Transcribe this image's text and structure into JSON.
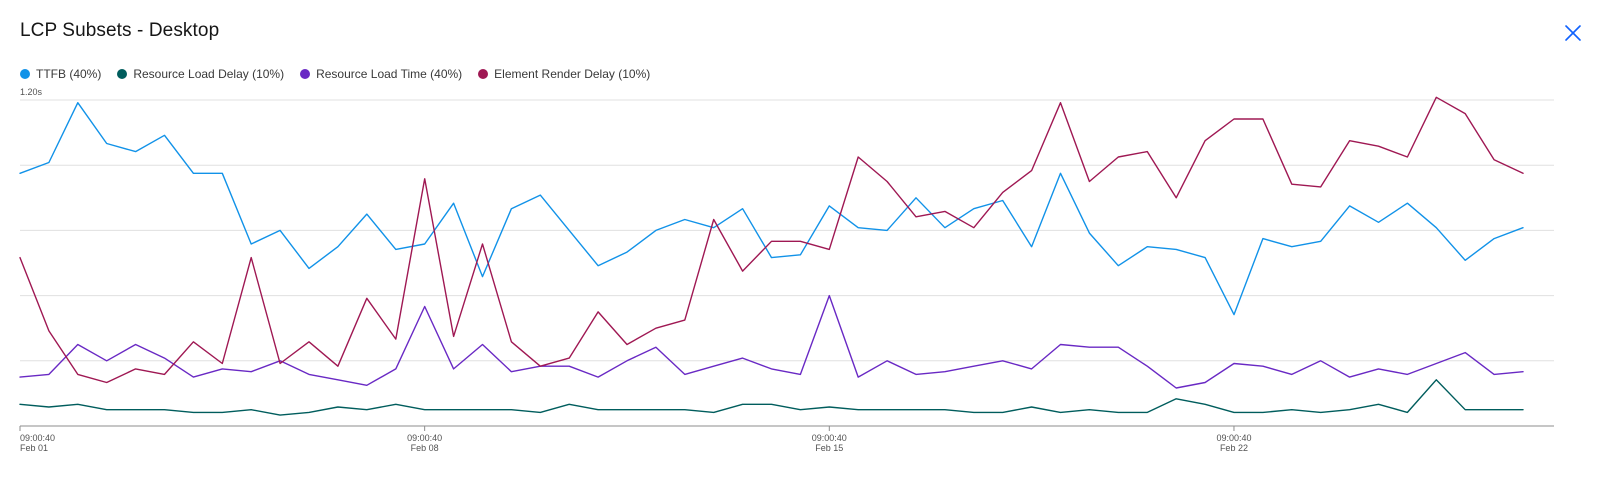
{
  "header": {
    "title": "LCP Subsets - Desktop",
    "close_icon": "close-icon"
  },
  "legend": [
    {
      "label": "TTFB (40%)",
      "color": "#1192e8"
    },
    {
      "label": "Resource Load Delay (10%)",
      "color": "#005d5d"
    },
    {
      "label": "Resource Load Time (40%)",
      "color": "#6929c4"
    },
    {
      "label": "Element Render Delay (10%)",
      "color": "#9f1853"
    }
  ],
  "chart_data": {
    "type": "line",
    "title": "LCP Subsets - Desktop",
    "ylim": [
      0,
      1.2
    ],
    "y_top_label": "1.20s",
    "grid": true,
    "legend_position": "top-left",
    "x_ticks": [
      {
        "index": 0,
        "time": "09:00:40",
        "date": "Feb 01"
      },
      {
        "index": 14,
        "time": "09:00:40",
        "date": "Feb 08"
      },
      {
        "index": 28,
        "time": "09:00:40",
        "date": "Feb 15"
      },
      {
        "index": 42,
        "time": "09:00:40",
        "date": "Feb 22"
      }
    ],
    "series": [
      {
        "name": "TTFB (40%)",
        "color": "#1192e8",
        "values": [
          0.93,
          0.97,
          1.19,
          1.04,
          1.01,
          1.07,
          0.93,
          0.93,
          0.67,
          0.72,
          0.58,
          0.66,
          0.78,
          0.65,
          0.67,
          0.82,
          0.55,
          0.8,
          0.85,
          0.72,
          0.59,
          0.64,
          0.72,
          0.76,
          0.73,
          0.8,
          0.62,
          0.63,
          0.81,
          0.73,
          0.72,
          0.84,
          0.73,
          0.8,
          0.83,
          0.66,
          0.93,
          0.71,
          0.59,
          0.66,
          0.65,
          0.62,
          0.41,
          0.69,
          0.66,
          0.68,
          0.81,
          0.75,
          0.82,
          0.73,
          0.61,
          0.69,
          0.73
        ]
      },
      {
        "name": "Resource Load Delay (10%)",
        "color": "#005d5d",
        "values": [
          0.08,
          0.07,
          0.08,
          0.06,
          0.06,
          0.06,
          0.05,
          0.05,
          0.06,
          0.04,
          0.05,
          0.07,
          0.06,
          0.08,
          0.06,
          0.06,
          0.06,
          0.06,
          0.05,
          0.08,
          0.06,
          0.06,
          0.06,
          0.06,
          0.05,
          0.08,
          0.08,
          0.06,
          0.07,
          0.06,
          0.06,
          0.06,
          0.06,
          0.05,
          0.05,
          0.07,
          0.05,
          0.06,
          0.05,
          0.05,
          0.1,
          0.08,
          0.05,
          0.05,
          0.06,
          0.05,
          0.06,
          0.08,
          0.05,
          0.17,
          0.06,
          0.06,
          0.06
        ]
      },
      {
        "name": "Resource Load Time (40%)",
        "color": "#6929c4",
        "values": [
          0.18,
          0.19,
          0.3,
          0.24,
          0.3,
          0.25,
          0.18,
          0.21,
          0.2,
          0.24,
          0.19,
          0.17,
          0.15,
          0.21,
          0.44,
          0.21,
          0.3,
          0.2,
          0.22,
          0.22,
          0.18,
          0.24,
          0.29,
          0.19,
          0.22,
          0.25,
          0.21,
          0.19,
          0.48,
          0.18,
          0.24,
          0.19,
          0.2,
          0.22,
          0.24,
          0.21,
          0.3,
          0.29,
          0.29,
          0.22,
          0.14,
          0.16,
          0.23,
          0.22,
          0.19,
          0.24,
          0.18,
          0.21,
          0.19,
          0.23,
          0.27,
          0.19,
          0.2
        ]
      },
      {
        "name": "Element Render Delay (10%)",
        "color": "#9f1853",
        "values": [
          0.62,
          0.35,
          0.19,
          0.16,
          0.21,
          0.19,
          0.31,
          0.23,
          0.62,
          0.23,
          0.31,
          0.22,
          0.47,
          0.32,
          0.91,
          0.33,
          0.67,
          0.31,
          0.22,
          0.25,
          0.42,
          0.3,
          0.36,
          0.39,
          0.76,
          0.57,
          0.68,
          0.68,
          0.65,
          0.99,
          0.9,
          0.77,
          0.79,
          0.73,
          0.86,
          0.94,
          1.19,
          0.9,
          0.99,
          1.01,
          0.84,
          1.05,
          1.13,
          1.13,
          0.89,
          0.88,
          1.05,
          1.03,
          0.99,
          1.21,
          1.15,
          0.98,
          0.93
        ]
      }
    ]
  }
}
